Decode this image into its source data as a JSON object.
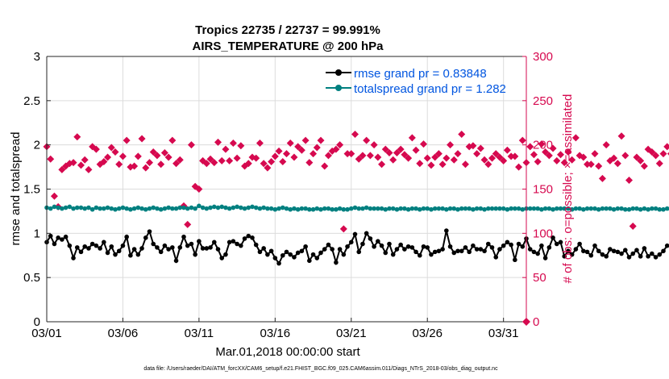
{
  "chart_data": {
    "type": "line",
    "title": "Tropics 22735 / 22737 = 99.991%",
    "subtitle": "AIRS_TEMPERATURE @ 200 hPa",
    "xlabel": "Mar.01,2018 00:00:00 start",
    "ylabel_left": "rmse and totalspread",
    "ylabel_right": "# of obs: o=possible; ×=assimilated",
    "footnote": "data file: /Users/raeder/DAI/ATM_forcXX/CAM6_setup/f.e21.FHIST_BGC.f09_025.CAM6assim.011/Diags_NTrS_2018-03/obs_diag_output.nc",
    "xlim": [
      0,
      31.5
    ],
    "ylim_left": [
      0,
      3
    ],
    "ylim_right": [
      0,
      300
    ],
    "x_ticks": [
      0,
      5,
      10,
      15,
      20,
      25,
      30
    ],
    "x_tick_labels": [
      "03/01",
      "03/06",
      "03/11",
      "03/16",
      "03/21",
      "03/26",
      "03/31"
    ],
    "y_left_ticks": [
      0,
      0.5,
      1,
      1.5,
      2,
      2.5,
      3
    ],
    "y_left_tick_labels": [
      "0",
      "0.5",
      "1",
      "1.5",
      "2",
      "2.5",
      "3"
    ],
    "y_right_ticks": [
      0,
      50,
      100,
      150,
      200,
      250,
      300
    ],
    "y_right_tick_labels": [
      "0",
      "50",
      "100",
      "150",
      "200",
      "250",
      "300"
    ],
    "x_step_days": 0.25,
    "colors": {
      "rmse": "#000000",
      "spread": "#008080",
      "obs": "#d6094f",
      "legend_text": "#0055e0",
      "right_axis": "#d6094f"
    },
    "series": [
      {
        "name": "rmse grand pr = 0.83848",
        "axis": "left",
        "values": [
          0.9,
          0.97,
          0.88,
          0.95,
          0.93,
          0.96,
          0.86,
          0.72,
          0.84,
          0.79,
          0.85,
          0.83,
          0.88,
          0.86,
          0.83,
          0.9,
          0.78,
          0.85,
          0.76,
          0.8,
          0.86,
          0.96,
          0.75,
          0.82,
          0.76,
          0.83,
          0.95,
          1.02,
          0.88,
          0.84,
          0.79,
          0.86,
          0.82,
          0.84,
          0.69,
          0.84,
          0.96,
          0.86,
          0.88,
          0.76,
          0.91,
          0.83,
          0.83,
          0.84,
          0.9,
          0.82,
          0.72,
          0.76,
          0.9,
          0.91,
          0.88,
          0.86,
          0.94,
          0.97,
          0.95,
          0.87,
          0.79,
          0.83,
          0.76,
          0.8,
          0.72,
          0.66,
          0.75,
          0.79,
          0.76,
          0.73,
          0.78,
          0.8,
          0.85,
          0.69,
          0.76,
          0.72,
          0.78,
          0.82,
          0.87,
          0.82,
          0.67,
          0.82,
          0.76,
          0.85,
          0.9,
          0.99,
          0.79,
          0.88,
          1.0,
          0.94,
          0.85,
          0.91,
          0.86,
          0.78,
          0.88,
          0.76,
          0.82,
          0.87,
          0.82,
          0.85,
          0.84,
          0.79,
          0.75,
          0.85,
          0.84,
          0.76,
          0.79,
          0.8,
          0.82,
          1.03,
          0.85,
          0.78,
          0.8,
          0.8,
          0.84,
          0.79,
          0.86,
          0.82,
          0.82,
          0.8,
          0.88,
          0.84,
          0.73,
          0.82,
          0.86,
          0.9,
          0.87,
          0.7,
          0.88,
          0.85,
          0.94,
          0.82,
          0.79,
          0.77,
          0.86,
          0.72,
          0.84,
          0.95,
          0.88,
          0.9,
          0.74,
          0.8,
          0.76,
          0.82,
          0.88,
          0.8,
          0.79,
          0.75,
          0.86,
          0.8,
          0.76,
          0.74,
          0.82,
          0.8,
          0.79,
          0.77,
          0.81,
          0.73,
          0.77,
          0.81,
          0.74,
          0.83,
          0.74,
          0.77,
          0.73,
          0.76,
          0.8,
          0.86
        ]
      },
      {
        "name": "totalspread grand pr = 1.282",
        "axis": "left",
        "values": [
          1.29,
          1.28,
          1.3,
          1.29,
          1.28,
          1.29,
          1.3,
          1.28,
          1.29,
          1.29,
          1.28,
          1.29,
          1.27,
          1.29,
          1.28,
          1.28,
          1.29,
          1.28,
          1.27,
          1.28,
          1.29,
          1.28,
          1.27,
          1.28,
          1.29,
          1.28,
          1.27,
          1.28,
          1.29,
          1.28,
          1.27,
          1.28,
          1.29,
          1.28,
          1.28,
          1.29,
          1.29,
          1.28,
          1.29,
          1.28,
          1.31,
          1.29,
          1.28,
          1.29,
          1.3,
          1.29,
          1.3,
          1.29,
          1.28,
          1.29,
          1.3,
          1.29,
          1.28,
          1.29,
          1.3,
          1.29,
          1.28,
          1.29,
          1.28,
          1.28,
          1.27,
          1.28,
          1.29,
          1.28,
          1.27,
          1.28,
          1.27,
          1.28,
          1.28,
          1.27,
          1.27,
          1.28,
          1.27,
          1.28,
          1.28,
          1.27,
          1.27,
          1.28,
          1.27,
          1.27,
          1.28,
          1.29,
          1.28,
          1.28,
          1.29,
          1.28,
          1.28,
          1.28,
          1.28,
          1.27,
          1.28,
          1.28,
          1.27,
          1.28,
          1.28,
          1.27,
          1.28,
          1.28,
          1.27,
          1.28,
          1.28,
          1.27,
          1.28,
          1.28,
          1.28,
          1.27,
          1.28,
          1.28,
          1.27,
          1.28,
          1.28,
          1.28,
          1.27,
          1.28,
          1.28,
          1.27,
          1.28,
          1.28,
          1.28,
          1.28,
          1.28,
          1.27,
          1.28,
          1.28,
          1.28,
          1.27,
          1.28,
          1.28,
          1.28,
          1.28,
          1.27,
          1.28,
          1.28,
          1.27,
          1.28,
          1.28,
          1.28,
          1.28,
          1.27,
          1.28,
          1.28,
          1.27,
          1.28,
          1.28,
          1.28,
          1.27,
          1.28,
          1.28,
          1.28,
          1.27,
          1.28,
          1.28,
          1.27,
          1.27,
          1.28,
          1.28,
          1.27,
          1.28,
          1.27,
          1.28,
          1.28,
          1.27,
          1.27,
          1.28,
          1.27,
          1.27
        ]
      },
      {
        "name": "# of obs assimilated",
        "axis": "right",
        "values": [
          198,
          184,
          142,
          130,
          172,
          176,
          179,
          180,
          209,
          177,
          183,
          172,
          198,
          195,
          178,
          181,
          186,
          197,
          192,
          178,
          187,
          205,
          175,
          176,
          187,
          207,
          174,
          180,
          192,
          188,
          178,
          191,
          186,
          205,
          179,
          183,
          131,
          110,
          200,
          153,
          150,
          182,
          179,
          184,
          180,
          203,
          182,
          195,
          182,
          202,
          185,
          199,
          176,
          179,
          186,
          185,
          202,
          179,
          174,
          181,
          187,
          193,
          181,
          190,
          202,
          186,
          198,
          194,
          205,
          180,
          190,
          197,
          205,
          176,
          188,
          193,
          195,
          200,
          105,
          190,
          190,
          212,
          184,
          188,
          205,
          188,
          200,
          186,
          178,
          195,
          191,
          183,
          191,
          195,
          189,
          185,
          208,
          194,
          179,
          201,
          185,
          177,
          186,
          190,
          178,
          185,
          200,
          183,
          190,
          212,
          178,
          198,
          199,
          190,
          196,
          183,
          178,
          185,
          190,
          186,
          182,
          194,
          187,
          187,
          175,
          205,
          180,
          198,
          189,
          181,
          201,
          192,
          188,
          196,
          182,
          189,
          180,
          192,
          183,
          208,
          188,
          186,
          178,
          178,
          190,
          176,
          162,
          200,
          182,
          185,
          179,
          210,
          188,
          160,
          108,
          186,
          182,
          176,
          195,
          192,
          188,
          179,
          190,
          198,
          190,
          186,
          188
        ]
      }
    ]
  }
}
